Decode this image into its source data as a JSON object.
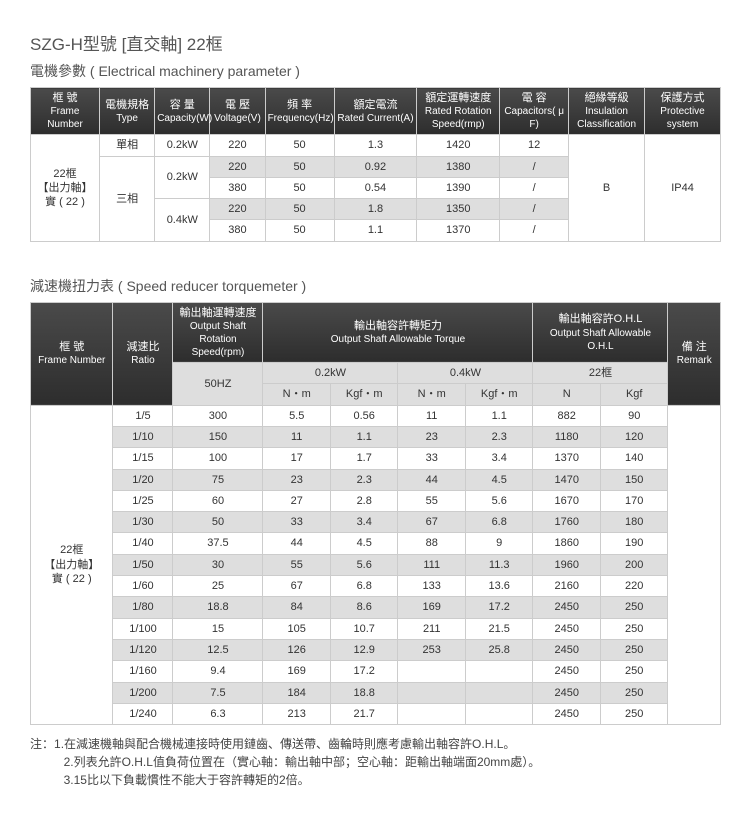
{
  "page_title": "SZG-H型號 [直交軸] 22框",
  "table1": {
    "subtitle": "電機參數 ( Electrical machinery parameter )",
    "headers": {
      "c1": "框 號",
      "c1s": "Frame Number",
      "c2": "電機規格",
      "c2s": "Type",
      "c3": "容 量",
      "c3s": "Capacity(W)",
      "c4": "電 壓",
      "c4s": "Voltage(V)",
      "c5": "頻 率",
      "c5s": "Frequency(Hz)",
      "c6": "額定電流",
      "c6s": "Rated Current(A)",
      "c7": "額定運轉速度",
      "c7s": "Rated Rotation Speed(rmp)",
      "c8": "電 容",
      "c8s": "Capacitors( μ F)",
      "c9": "絕緣等級",
      "c9s": "Insulation Classification",
      "c10": "保護方式",
      "c10s": "Protective system"
    },
    "frame": "22框\n【出力軸】\n實 ( 22 )",
    "type1": "單相",
    "type2": "三相",
    "cap1": "0.2kW",
    "cap2": "0.2kW",
    "cap3": "0.4kW",
    "row1": {
      "v": "220",
      "f": "50",
      "a": "1.3",
      "spd": "1420",
      "cap": "12"
    },
    "row2": {
      "v": "220",
      "f": "50",
      "a": "0.92",
      "spd": "1380",
      "cap": "/"
    },
    "row3": {
      "v": "380",
      "f": "50",
      "a": "0.54",
      "spd": "1390",
      "cap": "/"
    },
    "row4": {
      "v": "220",
      "f": "50",
      "a": "1.8",
      "spd": "1350",
      "cap": "/"
    },
    "row5": {
      "v": "380",
      "f": "50",
      "a": "1.1",
      "spd": "1370",
      "cap": "/"
    },
    "ins": "B",
    "prot": "IP44"
  },
  "table2": {
    "subtitle": "減速機扭力表 ( Speed reducer torquemeter )",
    "headers": {
      "c1": "框 號",
      "c1s": "Frame Number",
      "c2": "減速比",
      "c2s": "Ratio",
      "c3": "輸出軸運轉速度",
      "c3s": "Output Shaft Rotation Speed(rpm)",
      "c4": "輸出軸容許轉矩力",
      "c4s": "Output Shaft Allowable Torque",
      "c5": "輸出軸容許O.H.L",
      "c5s": "Output Shaft Allowable O.H.L",
      "c6": "備 注",
      "c6s": "Remark",
      "hz": "50HZ",
      "p1": "0.2kW",
      "p2": "0.4kW",
      "p3": "22框",
      "u1": "N・m",
      "u2": "Kgf・m",
      "u3": "N・m",
      "u4": "Kgf・m",
      "u5": "N",
      "u6": "Kgf"
    },
    "frame": "22框\n【出力軸】\n實 ( 22 )",
    "rows": [
      {
        "r": "1/5",
        "s": "300",
        "nm1": "5.5",
        "kg1": "0.56",
        "nm2": "11",
        "kg2": "1.1",
        "n": "882",
        "k": "90"
      },
      {
        "r": "1/10",
        "s": "150",
        "nm1": "11",
        "kg1": "1.1",
        "nm2": "23",
        "kg2": "2.3",
        "n": "1180",
        "k": "120"
      },
      {
        "r": "1/15",
        "s": "100",
        "nm1": "17",
        "kg1": "1.7",
        "nm2": "33",
        "kg2": "3.4",
        "n": "1370",
        "k": "140"
      },
      {
        "r": "1/20",
        "s": "75",
        "nm1": "23",
        "kg1": "2.3",
        "nm2": "44",
        "kg2": "4.5",
        "n": "1470",
        "k": "150"
      },
      {
        "r": "1/25",
        "s": "60",
        "nm1": "27",
        "kg1": "2.8",
        "nm2": "55",
        "kg2": "5.6",
        "n": "1670",
        "k": "170"
      },
      {
        "r": "1/30",
        "s": "50",
        "nm1": "33",
        "kg1": "3.4",
        "nm2": "67",
        "kg2": "6.8",
        "n": "1760",
        "k": "180"
      },
      {
        "r": "1/40",
        "s": "37.5",
        "nm1": "44",
        "kg1": "4.5",
        "nm2": "88",
        "kg2": "9",
        "n": "1860",
        "k": "190"
      },
      {
        "r": "1/50",
        "s": "30",
        "nm1": "55",
        "kg1": "5.6",
        "nm2": "111",
        "kg2": "11.3",
        "n": "1960",
        "k": "200"
      },
      {
        "r": "1/60",
        "s": "25",
        "nm1": "67",
        "kg1": "6.8",
        "nm2": "133",
        "kg2": "13.6",
        "n": "2160",
        "k": "220"
      },
      {
        "r": "1/80",
        "s": "18.8",
        "nm1": "84",
        "kg1": "8.6",
        "nm2": "169",
        "kg2": "17.2",
        "n": "2450",
        "k": "250"
      },
      {
        "r": "1/100",
        "s": "15",
        "nm1": "105",
        "kg1": "10.7",
        "nm2": "211",
        "kg2": "21.5",
        "n": "2450",
        "k": "250"
      },
      {
        "r": "1/120",
        "s": "12.5",
        "nm1": "126",
        "kg1": "12.9",
        "nm2": "253",
        "kg2": "25.8",
        "n": "2450",
        "k": "250"
      },
      {
        "r": "1/160",
        "s": "9.4",
        "nm1": "169",
        "kg1": "17.2",
        "nm2": "",
        "kg2": "",
        "n": "2450",
        "k": "250"
      },
      {
        "r": "1/200",
        "s": "7.5",
        "nm1": "184",
        "kg1": "18.8",
        "nm2": "",
        "kg2": "",
        "n": "2450",
        "k": "250"
      },
      {
        "r": "1/240",
        "s": "6.3",
        "nm1": "213",
        "kg1": "21.7",
        "nm2": "",
        "kg2": "",
        "n": "2450",
        "k": "250"
      }
    ]
  },
  "notes": {
    "prefix": "注：",
    "l1": "1.在減速機軸與配合機械連接時使用鏈齒、傳送帶、齒輪時則應考慮輸出軸容許O.H.L。",
    "l2": "2.列表允許O.H.L值負荷位置在（實心軸：輸出軸中部；空心軸：距輸出軸端面20mm處）。",
    "l3": "3.15比以下負載慣性不能大于容許轉矩的2倍。"
  },
  "colors": {
    "header_bg_top": "#4a4a4a",
    "header_bg_bottom": "#2d2d2d",
    "grey_row": "#dedede",
    "border": "#cccccc",
    "text": "#333333"
  }
}
